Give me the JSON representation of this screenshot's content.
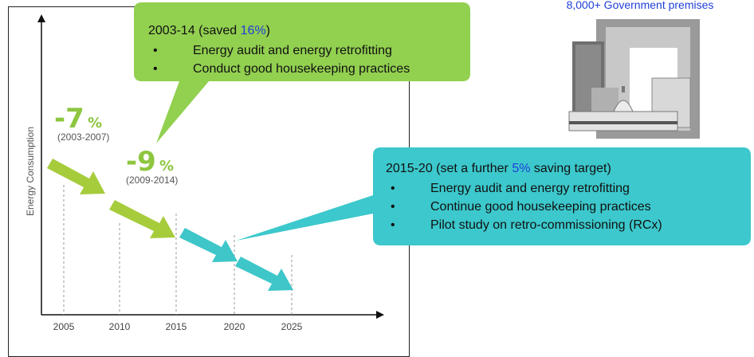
{
  "premises_label": "8,000+ Government premises",
  "y_axis_label": "Energy Consumption",
  "x_labels": [
    "2005",
    "2010",
    "2015",
    "2020",
    "2025"
  ],
  "reductions": [
    {
      "big": "-7",
      "unit": "%",
      "period": "(2003-2007)"
    },
    {
      "big": "-9",
      "unit": "%",
      "period": "(2009-2014)"
    }
  ],
  "callouts": [
    {
      "heading_before": "2003-14 (saved ",
      "highlight": "16%",
      "heading_after": ")",
      "bullets": [
        "Energy audit and energy retrofitting",
        "Conduct good housekeeping practices"
      ]
    },
    {
      "heading_before": "2015-20 (set a further ",
      "highlight": "5%",
      "heading_after": " saving target)",
      "bullets": [
        "Energy audit and energy retrofitting",
        "Continue good housekeeping practices",
        "Pilot study on retro-commissioning (RCx)"
      ]
    }
  ]
}
